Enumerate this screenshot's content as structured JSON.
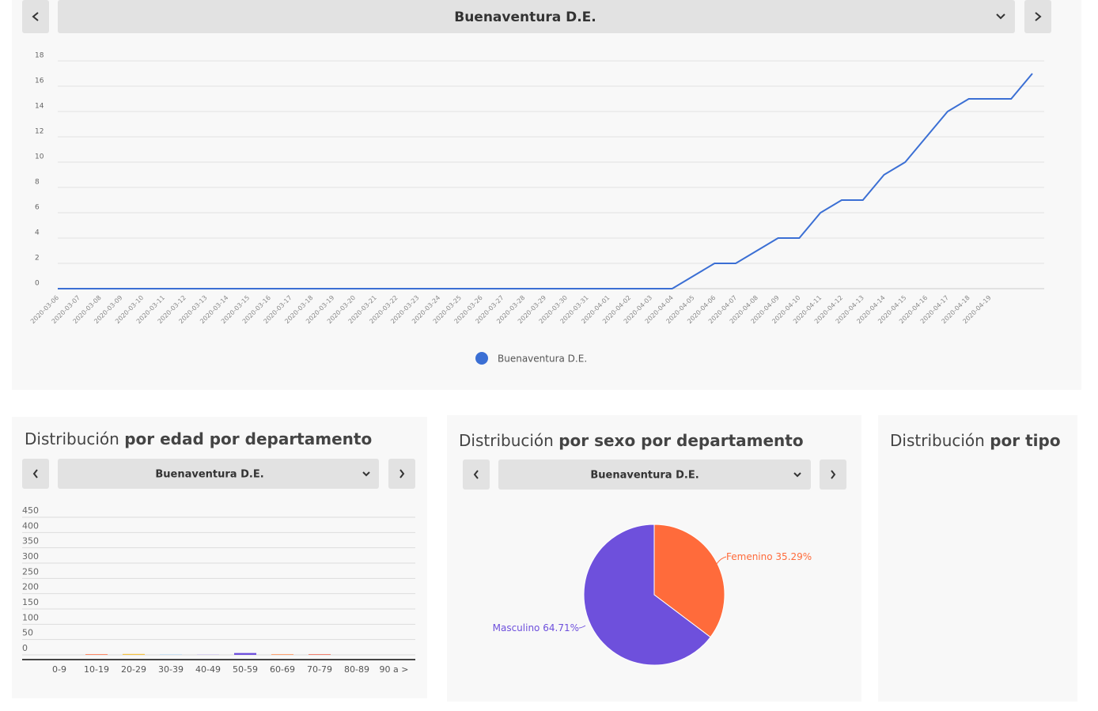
{
  "selector": {
    "value": "Buenaventura D.E."
  },
  "panels": [
    {
      "title_light": "Distribución",
      "title_bold": "por edad por departamento",
      "selector": "Buenaventura D.E."
    },
    {
      "title_light": "Distribución",
      "title_bold": "por sexo por departamento",
      "selector": "Buenaventura D.E."
    },
    {
      "title_light": "Distribución",
      "title_bold": "por tipo"
    }
  ],
  "chart_data": [
    {
      "type": "line",
      "x": [
        "2020-03-06",
        "2020-03-07",
        "2020-03-08",
        "2020-03-09",
        "2020-03-10",
        "2020-03-11",
        "2020-03-12",
        "2020-03-13",
        "2020-03-14",
        "2020-03-15",
        "2020-03-16",
        "2020-03-17",
        "2020-03-18",
        "2020-03-19",
        "2020-03-20",
        "2020-03-21",
        "2020-03-22",
        "2020-03-23",
        "2020-03-24",
        "2020-03-25",
        "2020-03-26",
        "2020-03-27",
        "2020-03-28",
        "2020-03-29",
        "2020-03-30",
        "2020-03-31",
        "2020-04-01",
        "2020-04-02",
        "2020-04-03",
        "2020-04-04",
        "2020-04-05",
        "2020-04-06",
        "2020-04-07",
        "2020-04-08",
        "2020-04-09",
        "2020-04-10",
        "2020-04-11",
        "2020-04-12",
        "2020-04-13",
        "2020-04-14",
        "2020-04-15",
        "2020-04-16",
        "2020-04-17",
        "2020-04-18",
        "2020-04-19",
        null,
        null
      ],
      "series": [
        {
          "name": "Buenaventura D.E.",
          "color": "#3b6fd4",
          "values": [
            0,
            0,
            0,
            0,
            0,
            0,
            0,
            0,
            0,
            0,
            0,
            0,
            0,
            0,
            0,
            0,
            0,
            0,
            0,
            0,
            0,
            0,
            0,
            0,
            0,
            0,
            0,
            0,
            0,
            0,
            1,
            2,
            2,
            3,
            4,
            4,
            6,
            7,
            7,
            9,
            10,
            12,
            14,
            15,
            15,
            15,
            17
          ]
        }
      ],
      "ylim": [
        0,
        18
      ],
      "yticks": [
        0,
        2,
        4,
        6,
        8,
        10,
        12,
        14,
        16,
        18
      ],
      "grid": true,
      "legend": "bottom"
    },
    {
      "type": "bar",
      "categories": [
        "0-9",
        "10-19",
        "20-29",
        "30-39",
        "40-49",
        "50-59",
        "60-69",
        "70-79",
        "80-89",
        "90 a >"
      ],
      "values": [
        0,
        2,
        3,
        1,
        1,
        6,
        2,
        2,
        0,
        0
      ],
      "colors": [
        "#ff6b3b",
        "#ff6b3b",
        "#f5c242",
        "#8fc7f0",
        "#b7a8ec",
        "#6e50dc",
        "#ff8a4c",
        "#f0604a",
        "#999999",
        "#999999"
      ],
      "ylim": [
        0,
        450
      ],
      "yticks": [
        0,
        50,
        100,
        150,
        200,
        250,
        300,
        350,
        400,
        450
      ],
      "grid": true
    },
    {
      "type": "pie",
      "categories": [
        "Femenino",
        "Masculino"
      ],
      "values": [
        35.29,
        64.71
      ],
      "value_labels": [
        "35.29%",
        "64.71%"
      ],
      "colors": [
        "#ff6b3b",
        "#6e50dc"
      ]
    }
  ]
}
